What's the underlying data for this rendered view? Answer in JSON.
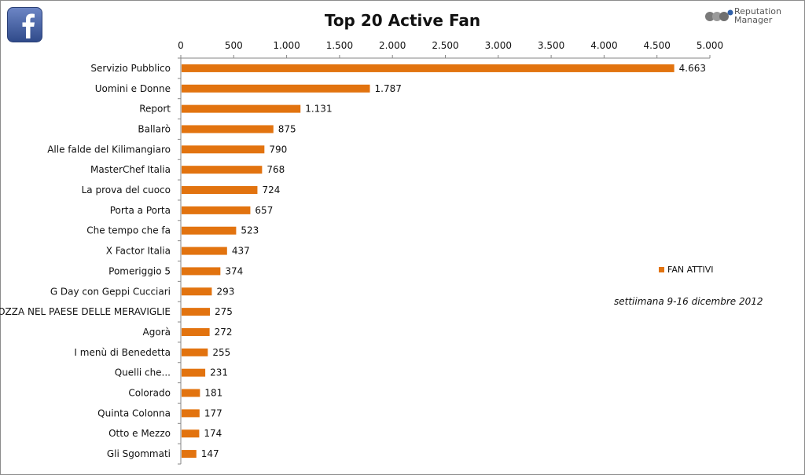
{
  "title": "Top 20 Active Fan",
  "logos": {
    "left": "facebook-logo",
    "right_line1": "Reputation",
    "right_line2": "Manager"
  },
  "note": "settiimana 9-16 dicembre 2012",
  "colors": {
    "bar": "#e2730f",
    "fb_blue": "#3b5998"
  },
  "chart_data": {
    "type": "bar",
    "orientation": "horizontal",
    "title": "Top 20 Active Fan",
    "categories": [
      "Servizio Pubblico",
      "Uomini e Donne",
      "Report",
      "Ballarò",
      "Alle falde del Kilimangiaro",
      "MasterChef Italia",
      "La prova del cuoco",
      "Porta a Porta",
      "Che tempo che fa",
      "X Factor Italia",
      "Pomeriggio 5",
      "G Day con Geppi Cucciari",
      "CROZZA NEL PAESE DELLE MERAVIGLIE",
      "Agorà",
      "I menù di Benedetta",
      "Quelli che...",
      "Colorado",
      "Quinta Colonna",
      "Otto e Mezzo",
      "Gli Sgommati"
    ],
    "series": [
      {
        "name": "FAN ATTIVI",
        "values": [
          4663,
          1787,
          1131,
          875,
          790,
          768,
          724,
          657,
          523,
          437,
          374,
          293,
          275,
          272,
          255,
          231,
          181,
          177,
          174,
          147
        ],
        "labels": [
          "4.663",
          "1.787",
          "1.131",
          "875",
          "790",
          "768",
          "724",
          "657",
          "523",
          "437",
          "374",
          "293",
          "275",
          "272",
          "255",
          "231",
          "181",
          "177",
          "174",
          "147"
        ]
      }
    ],
    "xlim": [
      0,
      5000
    ],
    "ticks": [
      "0",
      "500",
      "1.000",
      "1.500",
      "2.000",
      "2.500",
      "3.000",
      "3.500",
      "4.000",
      "4.500",
      "5.000"
    ],
    "axis_position": "top",
    "grid": false,
    "legend_position": "right"
  }
}
